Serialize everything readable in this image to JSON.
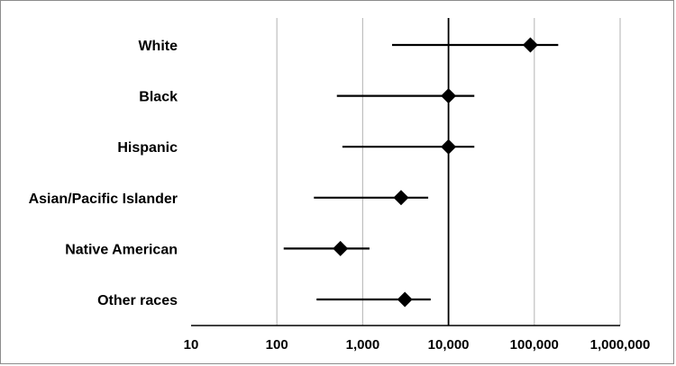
{
  "chart_data": {
    "type": "forest",
    "title": "",
    "xlabel": "",
    "ylabel": "",
    "x_scale": "log",
    "xlim": [
      10,
      1000000
    ],
    "x_ticks": [
      10,
      100,
      1000,
      10000,
      100000,
      1000000
    ],
    "x_tick_labels": [
      "10",
      "100",
      "1,000",
      "10,000",
      "100,000",
      "1,000,000"
    ],
    "reference_line": 10000,
    "grid": "vertical",
    "categories": [
      "White",
      "Black",
      "Hispanic",
      "Asian/Pacific Islander",
      "Native American",
      "Other races"
    ],
    "estimates": [
      90000,
      10000,
      10000,
      2800,
      550,
      3100
    ],
    "lower": [
      2200,
      500,
      580,
      270,
      120,
      290
    ],
    "upper": [
      190000,
      20000,
      20000,
      5800,
      1200,
      6200
    ],
    "colors": {
      "marker": "#000000",
      "grid": "#bfbfbf",
      "axis": "#000000",
      "frame": "#8c8c8c"
    }
  }
}
